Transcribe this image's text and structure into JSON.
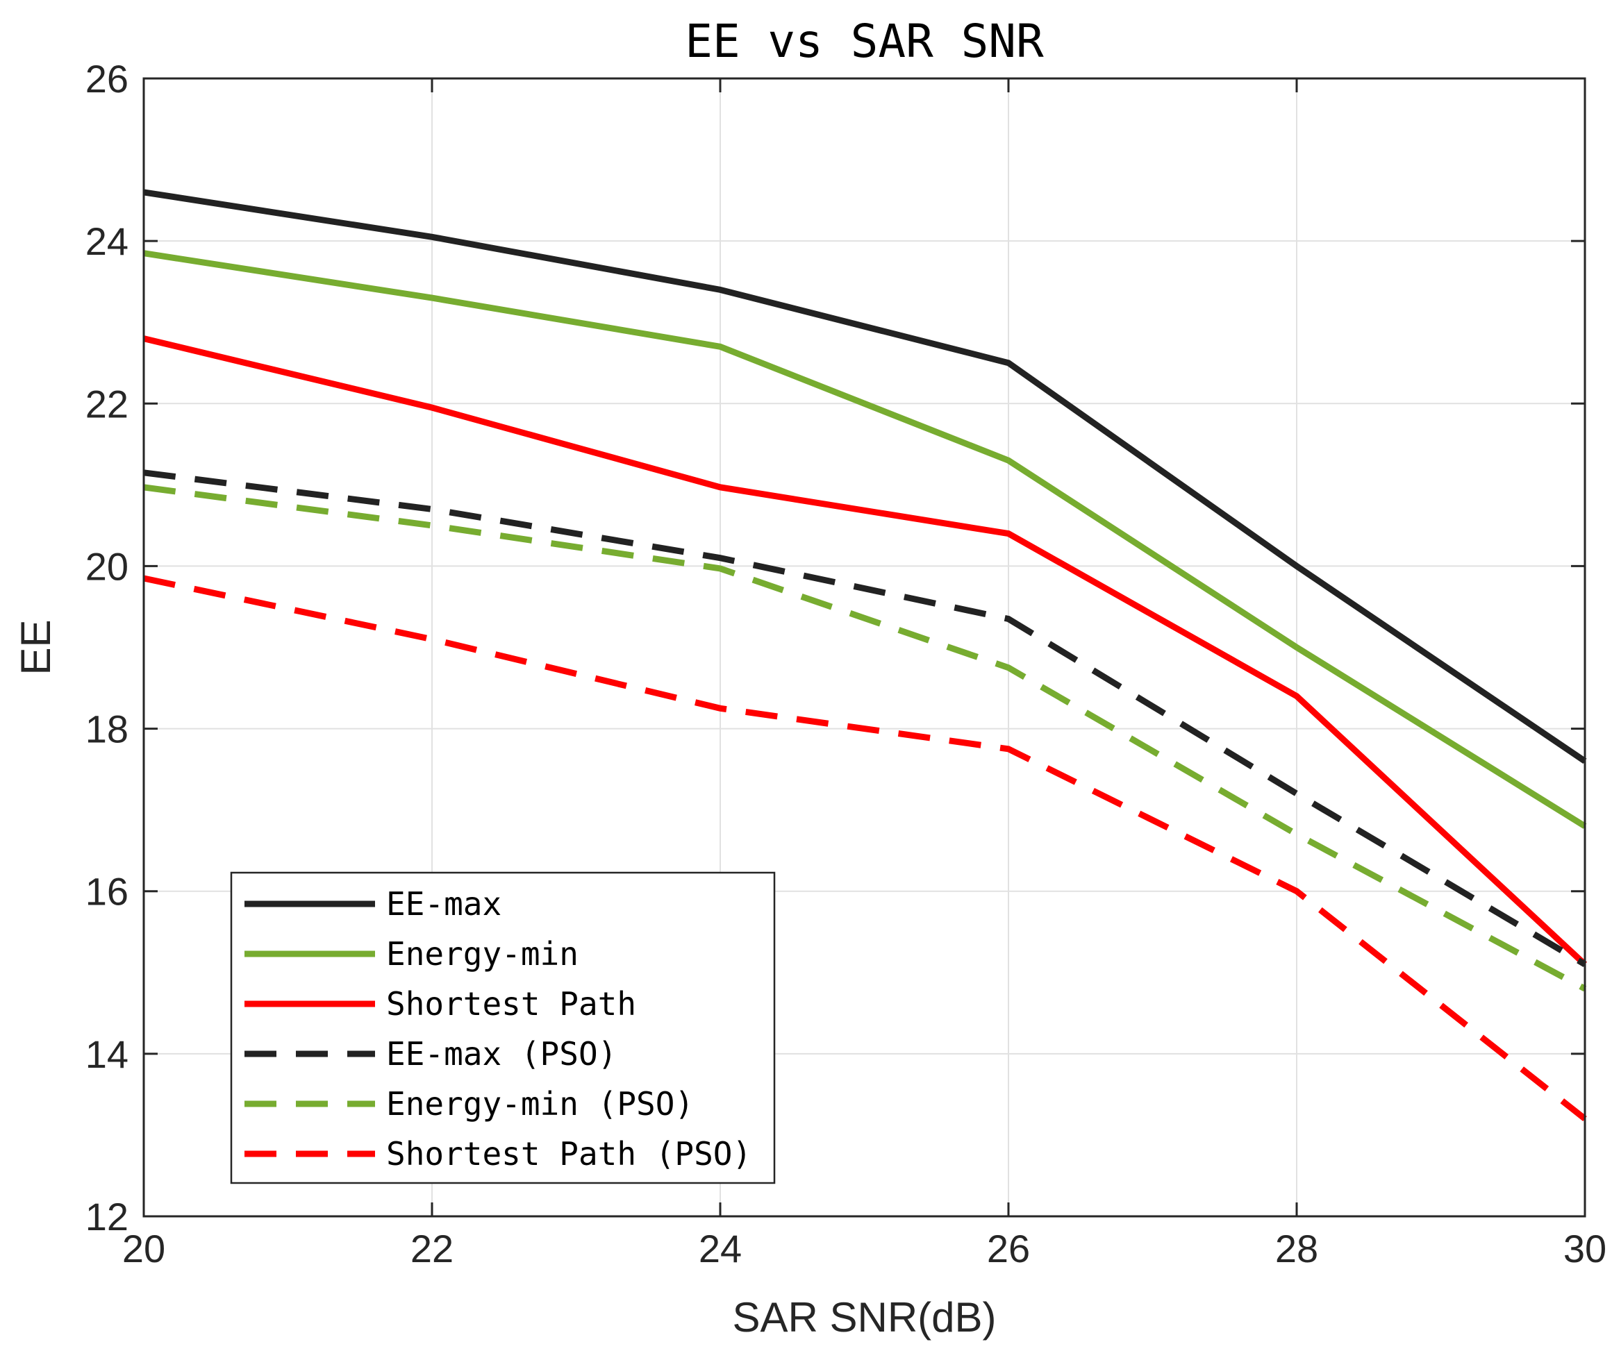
{
  "chart_data": {
    "type": "line",
    "title": "EE vs SAR SNR",
    "xlabel": "SAR SNR(dB)",
    "ylabel": "EE",
    "xlim": [
      20,
      30
    ],
    "ylim": [
      12,
      26
    ],
    "xticks": [
      20,
      22,
      24,
      26,
      28,
      30
    ],
    "yticks": [
      12,
      14,
      16,
      18,
      20,
      22,
      24,
      26
    ],
    "grid": true,
    "legend_position": "bottom-left",
    "x": [
      20,
      22,
      24,
      26,
      28,
      30
    ],
    "series": [
      {
        "name": "EE-max",
        "color": "#222222",
        "style": "solid",
        "values": [
          24.6,
          24.05,
          23.4,
          22.5,
          20.0,
          17.6
        ]
      },
      {
        "name": "Energy-min",
        "color": "#77AC30",
        "style": "solid",
        "values": [
          23.85,
          23.3,
          22.7,
          21.3,
          19.0,
          16.8
        ]
      },
      {
        "name": "Shortest Path",
        "color": "#FF0000",
        "style": "solid",
        "values": [
          22.8,
          21.95,
          20.97,
          20.4,
          18.4,
          15.1
        ]
      },
      {
        "name": "EE-max (PSO)",
        "color": "#222222",
        "style": "dashed",
        "values": [
          21.15,
          20.7,
          20.1,
          19.35,
          17.2,
          15.1
        ]
      },
      {
        "name": "Energy-min (PSO)",
        "color": "#77AC30",
        "style": "dashed",
        "values": [
          20.97,
          20.5,
          19.97,
          18.75,
          16.7,
          14.8
        ]
      },
      {
        "name": "Shortest Path (PSO)",
        "color": "#FF0000",
        "style": "dashed",
        "values": [
          19.85,
          19.1,
          18.25,
          17.75,
          16.0,
          13.2
        ]
      }
    ]
  }
}
